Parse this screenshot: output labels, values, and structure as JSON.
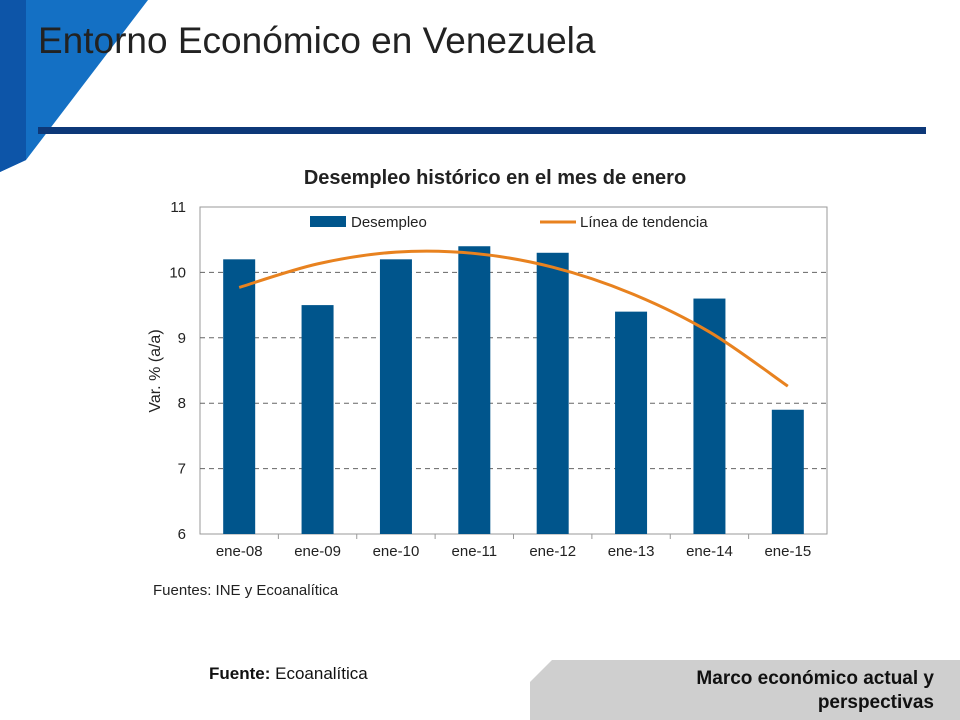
{
  "slide": {
    "title": "Entorno Económico en Venezuela",
    "source_label": "Fuente:",
    "source_value": "Ecoanalítica",
    "footer": "Marco económico actual y perspectivas"
  },
  "colors": {
    "accent": "#0d3878",
    "corner": "#1470c4",
    "bar": "#00558c",
    "trend": "#e8821f",
    "footer_band": "#cfcfcf"
  },
  "chart_data": {
    "type": "bar",
    "title": "Desempleo histórico en el mes de enero",
    "ylabel": "Var. % (a/a)",
    "xlabel": "",
    "categories": [
      "ene-08",
      "ene-09",
      "ene-10",
      "ene-11",
      "ene-12",
      "ene-13",
      "ene-14",
      "ene-15"
    ],
    "series": [
      {
        "name": "Desempleo",
        "values": [
          10.2,
          9.5,
          10.2,
          10.4,
          10.3,
          9.4,
          9.6,
          7.9
        ]
      }
    ],
    "trend": {
      "name": "Línea de tendencia",
      "values": [
        9.77,
        10.13,
        10.31,
        10.29,
        10.08,
        9.68,
        9.09,
        8.26
      ]
    },
    "ylim": [
      6,
      11
    ],
    "yticks": [
      6,
      7,
      8,
      9,
      10,
      11
    ],
    "grid": true,
    "legend": "top",
    "source_note": "Fuentes: INE y Ecoanalítica"
  }
}
